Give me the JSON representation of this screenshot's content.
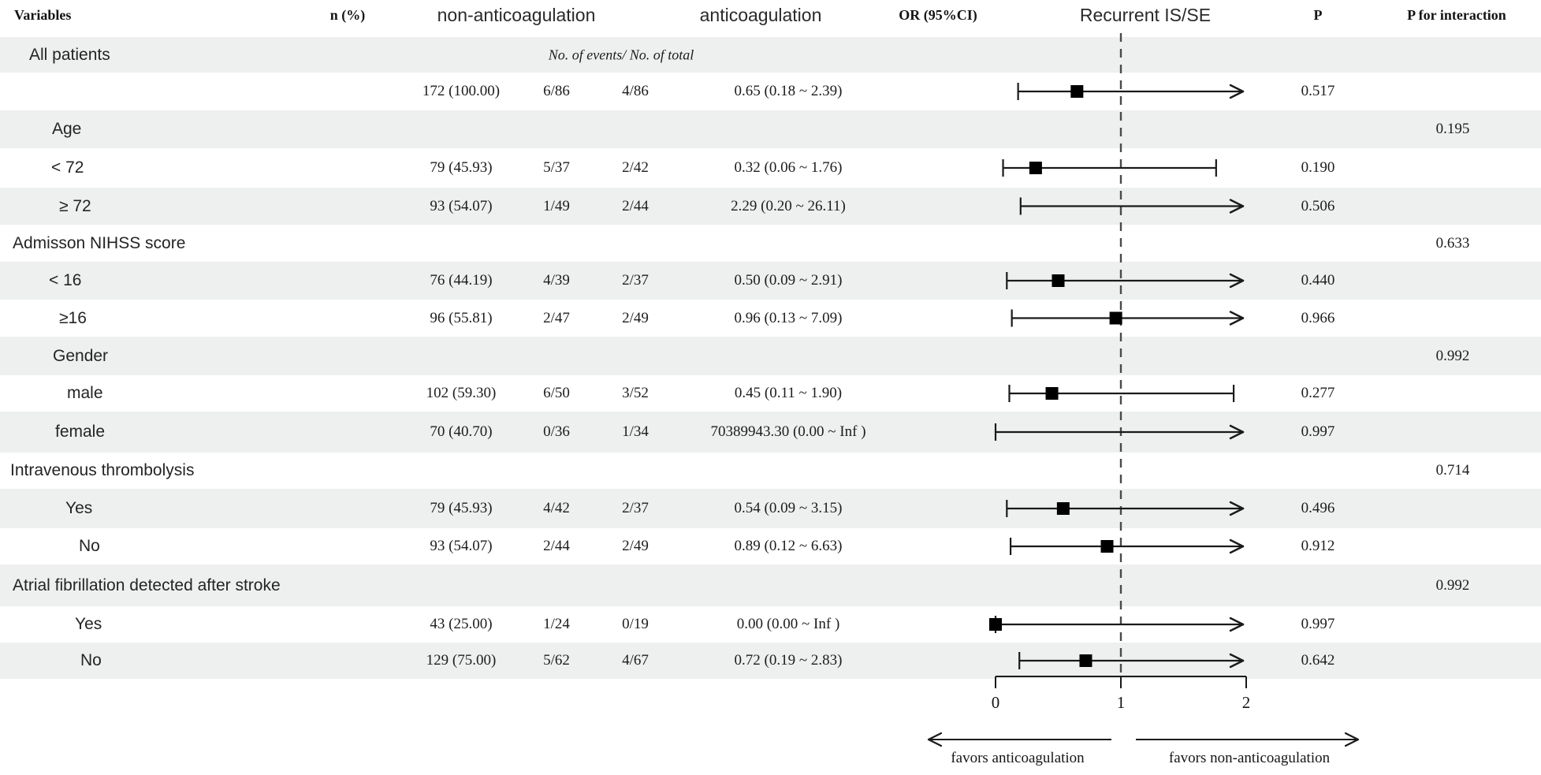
{
  "header": {
    "variables": "Variables",
    "n_pct": "n (%)",
    "non_anticoagulation": "non-anticoagulation",
    "anticoagulation": "anticoagulation",
    "or_ci": "OR (95%CI)",
    "recurrent": "Recurrent IS/SE",
    "p": "P",
    "p_interaction": "P for interaction"
  },
  "events_note": "No. of events/ No. of total",
  "rows": [
    {
      "label": "All patients",
      "shaded": true,
      "note": true
    },
    {
      "cells": {
        "n_pct": "172 (100.00)",
        "ev_non": "6/86",
        "ev_anti": "4/86",
        "or_text": "0.65 (0.18 ~ 2.39)",
        "p": "0.517"
      }
    },
    {
      "label": "Age",
      "shaded": true,
      "p_int": "0.195"
    },
    {
      "label": "< 72",
      "cells": {
        "n_pct": "79 (45.93)",
        "ev_non": "5/37",
        "ev_anti": "2/42",
        "or_text": "0.32 (0.06 ~ 1.76)",
        "p": "0.190"
      }
    },
    {
      "label": "≥ 72",
      "shaded": true,
      "cells": {
        "n_pct": "93 (54.07)",
        "ev_non": "1/49",
        "ev_anti": "2/44",
        "or_text": "2.29 (0.20 ~ 26.11)",
        "p": "0.506"
      }
    },
    {
      "label": "Admisson NIHSS score",
      "p_int": "0.633"
    },
    {
      "label": "< 16",
      "shaded": true,
      "cells": {
        "n_pct": "76 (44.19)",
        "ev_non": "4/39",
        "ev_anti": "2/37",
        "or_text": "0.50 (0.09 ~ 2.91)",
        "p": "0.440"
      }
    },
    {
      "label": "≥16",
      "cells": {
        "n_pct": "96 (55.81)",
        "ev_non": "2/47",
        "ev_anti": "2/49",
        "or_text": "0.96 (0.13 ~ 7.09)",
        "p": "0.966"
      }
    },
    {
      "label": "Gender",
      "shaded": true,
      "p_int": "0.992"
    },
    {
      "label": "male",
      "cells": {
        "n_pct": "102 (59.30)",
        "ev_non": "6/50",
        "ev_anti": "3/52",
        "or_text": "0.45 (0.11 ~ 1.90)",
        "p": "0.277"
      }
    },
    {
      "label": "female",
      "shaded": true,
      "cells": {
        "n_pct": "70 (40.70)",
        "ev_non": "0/36",
        "ev_anti": "1/34",
        "or_text": "70389943.30 (0.00 ~ Inf )",
        "p": "0.997"
      }
    },
    {
      "label": "Intravenous thrombolysis",
      "p_int": "0.714"
    },
    {
      "label": "Yes",
      "shaded": true,
      "cells": {
        "n_pct": "79 (45.93)",
        "ev_non": "4/42",
        "ev_anti": "2/37",
        "or_text": "0.54 (0.09 ~ 3.15)",
        "p": "0.496"
      }
    },
    {
      "label": "No",
      "cells": {
        "n_pct": "93 (54.07)",
        "ev_non": "2/44",
        "ev_anti": "2/49",
        "or_text": "0.89 (0.12 ~ 6.63)",
        "p": "0.912"
      }
    },
    {
      "label": "Atrial fibrillation detected after stroke",
      "shaded": true,
      "p_int": "0.992"
    },
    {
      "label": "Yes",
      "cells": {
        "n_pct": "43 (25.00)",
        "ev_non": "1/24",
        "ev_anti": "0/19",
        "or_text": "0.00 (0.00 ~ Inf )",
        "p": "0.997"
      }
    },
    {
      "label": "No",
      "shaded": true,
      "cells": {
        "n_pct": "129 (75.00)",
        "ev_non": "5/62",
        "ev_anti": "4/67",
        "or_text": "0.72 (0.19 ~ 2.83)",
        "p": "0.642"
      }
    }
  ],
  "chart_data": {
    "type": "forest",
    "title": "Recurrent IS/SE",
    "xlim": [
      0,
      2
    ],
    "ticks": [
      "0",
      "1",
      "2"
    ],
    "reference_line": 1,
    "legend_left": "favors anticoagulation",
    "legend_right": "favors non-anticoagulation",
    "rows": [
      {
        "subgroup": "All patients",
        "or": 0.65,
        "lo": 0.18,
        "hi": 2.39,
        "p": "0.517",
        "row": 1
      },
      {
        "subgroup": "Age < 72",
        "or": 0.32,
        "lo": 0.06,
        "hi": 1.76,
        "p": "0.190",
        "row": 3
      },
      {
        "subgroup": "Age ≥ 72",
        "or": 2.29,
        "lo": 0.2,
        "hi": 26.11,
        "p": "0.506",
        "row": 4
      },
      {
        "subgroup": "Admisson NIHSS < 16",
        "or": 0.5,
        "lo": 0.09,
        "hi": 2.91,
        "p": "0.440",
        "row": 6
      },
      {
        "subgroup": "Admisson NIHSS ≥ 16",
        "or": 0.96,
        "lo": 0.13,
        "hi": 7.09,
        "p": "0.966",
        "row": 7
      },
      {
        "subgroup": "male",
        "or": 0.45,
        "lo": 0.11,
        "hi": 1.9,
        "p": "0.277",
        "row": 9
      },
      {
        "subgroup": "female",
        "or": 70389943.3,
        "lo": 0.0,
        "hi": null,
        "p": "0.997",
        "row": 10
      },
      {
        "subgroup": "Intravenous thrombolysis Yes",
        "or": 0.54,
        "lo": 0.09,
        "hi": 3.15,
        "p": "0.496",
        "row": 12
      },
      {
        "subgroup": "Intravenous thrombolysis No",
        "or": 0.89,
        "lo": 0.12,
        "hi": 6.63,
        "p": "0.912",
        "row": 13
      },
      {
        "subgroup": "Atrial fibrillation detected after stroke Yes",
        "or": 0.0,
        "lo": 0.0,
        "hi": null,
        "p": "0.997",
        "row": 15
      },
      {
        "subgroup": "Atrial fibrillation detected after stroke No",
        "or": 0.72,
        "lo": 0.19,
        "hi": 2.83,
        "p": "0.642",
        "row": 16
      }
    ]
  },
  "colors": {
    "band": "#edf0ee",
    "marker": "#000000",
    "line": "#1a1a1a",
    "dashed": "#4a4a4a"
  }
}
